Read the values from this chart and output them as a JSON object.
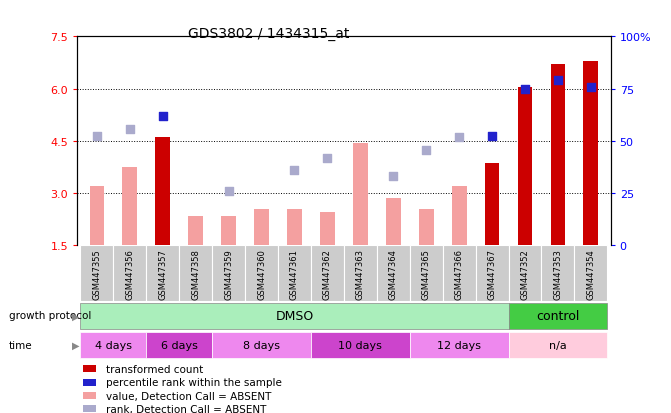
{
  "title": "GDS3802 / 1434315_at",
  "samples": [
    "GSM447355",
    "GSM447356",
    "GSM447357",
    "GSM447358",
    "GSM447359",
    "GSM447360",
    "GSM447361",
    "GSM447362",
    "GSM447363",
    "GSM447364",
    "GSM447365",
    "GSM447366",
    "GSM447367",
    "GSM447352",
    "GSM447353",
    "GSM447354"
  ],
  "bar_colors": [
    "pink",
    "pink",
    "red",
    "pink",
    "pink",
    "pink",
    "pink",
    "pink",
    "pink",
    "pink",
    "pink",
    "pink",
    "red",
    "red",
    "red",
    "red"
  ],
  "bar_values": [
    3.2,
    3.75,
    4.6,
    2.35,
    2.35,
    2.55,
    2.55,
    2.45,
    4.45,
    2.85,
    2.55,
    3.2,
    3.85,
    6.05,
    6.7,
    6.8
  ],
  "scatter_colors": [
    "lblue",
    "lblue",
    "blue",
    "none",
    "lblue",
    "none",
    "lblue",
    "lblue",
    "none",
    "lblue",
    "lblue",
    "lblue",
    "blue",
    "blue",
    "blue",
    "blue"
  ],
  "scatter_values": [
    4.65,
    4.85,
    5.2,
    null,
    3.05,
    null,
    3.65,
    4.0,
    null,
    3.5,
    4.25,
    4.6,
    4.65,
    6.0,
    6.25,
    6.05
  ],
  "ylim_left": [
    1.5,
    7.5
  ],
  "ylim_right": [
    0,
    100
  ],
  "yticks_left": [
    1.5,
    3.0,
    4.5,
    6.0,
    7.5
  ],
  "yticks_right": [
    0,
    25,
    50,
    75,
    100
  ],
  "pink_bar_color": "#f4a0a0",
  "red_bar_color": "#cc0000",
  "blue_dot_color": "#2222cc",
  "light_blue_dot_color": "#aaaacc",
  "bar_width": 0.45,
  "dot_size": 30,
  "dmso_color": "#aaeebb",
  "control_color": "#44cc44",
  "time_colors": [
    "#ee88ee",
    "#cc44cc",
    "#ee88ee",
    "#cc44cc",
    "#ee88ee",
    "#ffccdd"
  ],
  "time_labels": [
    "4 days",
    "6 days",
    "8 days",
    "10 days",
    "12 days",
    "n/a"
  ],
  "time_starts": [
    0,
    2,
    3,
    6,
    9,
    11
  ],
  "time_ends": [
    2,
    3,
    6,
    9,
    11,
    15
  ],
  "legend_items": [
    {
      "color": "#cc0000",
      "label": "transformed count"
    },
    {
      "color": "#2222cc",
      "label": "percentile rank within the sample"
    },
    {
      "color": "#f4a0a0",
      "label": "value, Detection Call = ABSENT"
    },
    {
      "color": "#aaaacc",
      "label": "rank, Detection Call = ABSENT"
    }
  ]
}
